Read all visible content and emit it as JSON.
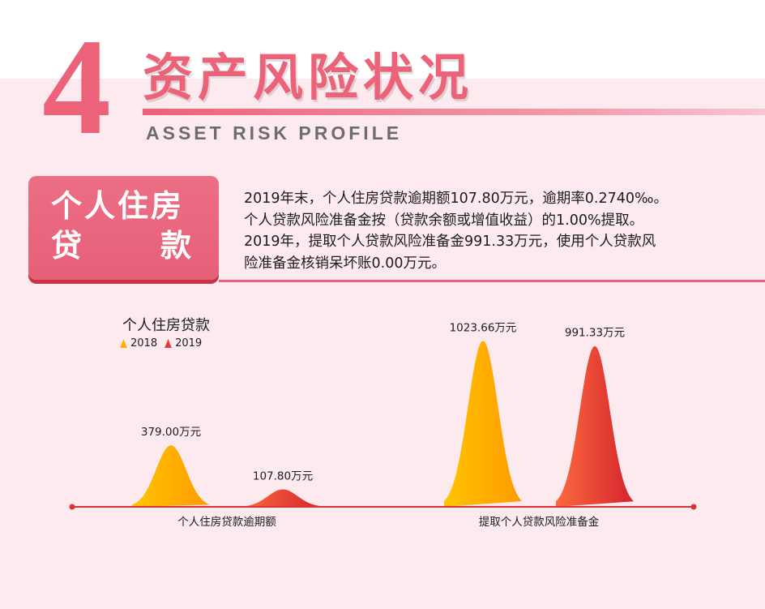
{
  "header": {
    "number": "4",
    "title_cn": "资产风险状况",
    "title_en": "ASSET RISK PROFILE"
  },
  "section": {
    "tag_line1": "个人住房",
    "tag_line2a": "贷",
    "tag_line2b": "款",
    "paragraph": [
      "2019年末，个人住房贷款逾期额107.80万元，逾期率0.2740‰。",
      "个人贷款风险准备金按（贷款余额或增值收益）的1.00%提取。",
      "2019年，提取个人贷款风险准备金991.33万元，使用个人贷款风",
      "险准备金核销呆坏账0.00万元。"
    ]
  },
  "colors": {
    "accent": "#ec6279",
    "series_2018": "#ffb000",
    "series_2019": "#e8383a",
    "axis": "#d8323d"
  },
  "chart_data": {
    "type": "area",
    "title": "个人住房贷款",
    "categories": [
      "个人住房贷款逾期额",
      "提取个人贷款风险准备金"
    ],
    "series": [
      {
        "name": "2018",
        "values": [
          379.0,
          1023.66
        ],
        "labels": [
          "379.00万元",
          "1023.66万元"
        ]
      },
      {
        "name": "2019",
        "values": [
          107.8,
          991.33
        ],
        "labels": [
          "107.80万元",
          "991.33万元"
        ]
      }
    ],
    "legend": "top-left",
    "grid": false
  }
}
